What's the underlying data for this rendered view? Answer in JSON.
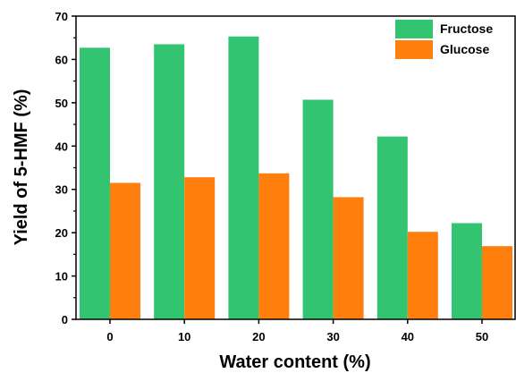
{
  "chart_data": {
    "type": "bar",
    "categories": [
      "0",
      "10",
      "20",
      "30",
      "40",
      "50"
    ],
    "series": [
      {
        "name": "Fructose",
        "values": [
          62.7,
          63.5,
          65.3,
          50.7,
          42.2,
          22.2
        ],
        "color": "#33c472"
      },
      {
        "name": "Glucose",
        "values": [
          31.5,
          32.8,
          33.7,
          28.2,
          20.2,
          16.9
        ],
        "color": "#ff7f0e"
      }
    ],
    "xlabel": "Water content (%)",
    "ylabel": "Yield of 5-HMF (%)",
    "ylim": [
      0,
      70
    ],
    "yticks": [
      "0",
      "10",
      "20",
      "30",
      "40",
      "50",
      "60",
      "70"
    ],
    "legend_position": "top-right",
    "grid": false
  }
}
